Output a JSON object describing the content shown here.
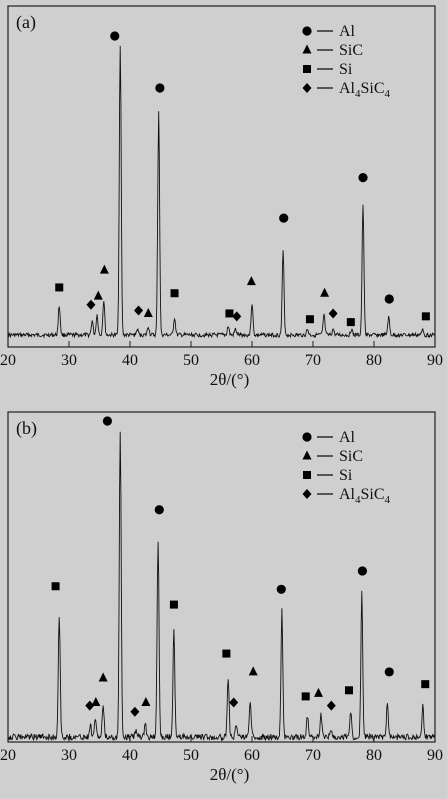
{
  "chart_data": [
    {
      "type": "line",
      "panel_label": "(a)",
      "xlabel": "2θ/(°)",
      "xlim": [
        20,
        90
      ],
      "xticks": [
        20,
        30,
        40,
        50,
        60,
        70,
        80,
        90
      ],
      "grid": false,
      "legend": {
        "placement": "top-right",
        "entries": [
          {
            "marker": "circle",
            "label": "Al"
          },
          {
            "marker": "triangle",
            "label": "SiC"
          },
          {
            "marker": "square",
            "label": "Si"
          },
          {
            "marker": "diamond",
            "label": "Al4SiC4"
          }
        ]
      },
      "peaks": [
        {
          "x": 28.4,
          "h": 0.1
        },
        {
          "x": 33.8,
          "h": 0.05
        },
        {
          "x": 34.6,
          "h": 0.07
        },
        {
          "x": 35.7,
          "h": 0.12
        },
        {
          "x": 38.4,
          "h": 1.0
        },
        {
          "x": 41.2,
          "h": 0.02
        },
        {
          "x": 43.0,
          "h": 0.03
        },
        {
          "x": 44.7,
          "h": 0.77
        },
        {
          "x": 47.3,
          "h": 0.06
        },
        {
          "x": 56.1,
          "h": 0.03
        },
        {
          "x": 57.3,
          "h": 0.02
        },
        {
          "x": 60.0,
          "h": 0.11
        },
        {
          "x": 65.1,
          "h": 0.29
        },
        {
          "x": 69.1,
          "h": 0.02
        },
        {
          "x": 71.8,
          "h": 0.07
        },
        {
          "x": 73.3,
          "h": 0.02
        },
        {
          "x": 76.3,
          "h": 0.02
        },
        {
          "x": 78.2,
          "h": 0.45
        },
        {
          "x": 82.4,
          "h": 0.06
        },
        {
          "x": 88.0,
          "h": 0.02
        }
      ],
      "markers": [
        {
          "x": 28.4,
          "h": 0.13,
          "type": "square"
        },
        {
          "x": 33.6,
          "h": 0.07,
          "type": "diamond"
        },
        {
          "x": 34.8,
          "h": 0.1,
          "type": "triangle"
        },
        {
          "x": 35.8,
          "h": 0.19,
          "type": "triangle"
        },
        {
          "x": 37.5,
          "h": 1.0,
          "type": "circle"
        },
        {
          "x": 41.4,
          "h": 0.05,
          "type": "diamond"
        },
        {
          "x": 43.0,
          "h": 0.04,
          "type": "triangle"
        },
        {
          "x": 44.9,
          "h": 0.82,
          "type": "circle"
        },
        {
          "x": 47.3,
          "h": 0.11,
          "type": "square"
        },
        {
          "x": 56.3,
          "h": 0.04,
          "type": "square"
        },
        {
          "x": 57.5,
          "h": 0.03,
          "type": "diamond"
        },
        {
          "x": 59.9,
          "h": 0.15,
          "type": "triangle"
        },
        {
          "x": 65.2,
          "h": 0.37,
          "type": "circle"
        },
        {
          "x": 69.5,
          "h": 0.02,
          "type": "square"
        },
        {
          "x": 71.9,
          "h": 0.11,
          "type": "triangle"
        },
        {
          "x": 73.3,
          "h": 0.04,
          "type": "diamond"
        },
        {
          "x": 76.2,
          "h": 0.01,
          "type": "square"
        },
        {
          "x": 78.2,
          "h": 0.51,
          "type": "circle"
        },
        {
          "x": 82.5,
          "h": 0.09,
          "type": "circle"
        },
        {
          "x": 88.5,
          "h": 0.03,
          "type": "square"
        }
      ]
    },
    {
      "type": "line",
      "panel_label": "(b)",
      "xlabel": "2θ/(°)",
      "xlim": [
        20,
        90
      ],
      "xticks": [
        20,
        30,
        40,
        50,
        60,
        70,
        80,
        90
      ],
      "grid": false,
      "legend": {
        "placement": "top-right",
        "entries": [
          {
            "marker": "circle",
            "label": "Al"
          },
          {
            "marker": "triangle",
            "label": "SiC"
          },
          {
            "marker": "square",
            "label": "Si"
          },
          {
            "marker": "diamond",
            "label": "Al4SiC4"
          }
        ]
      },
      "peaks": [
        {
          "x": 28.4,
          "h": 0.4
        },
        {
          "x": 33.5,
          "h": 0.04
        },
        {
          "x": 34.3,
          "h": 0.06
        },
        {
          "x": 35.6,
          "h": 0.1
        },
        {
          "x": 38.4,
          "h": 1.0
        },
        {
          "x": 40.9,
          "h": 0.02
        },
        {
          "x": 42.5,
          "h": 0.04
        },
        {
          "x": 44.6,
          "h": 0.64
        },
        {
          "x": 47.2,
          "h": 0.35
        },
        {
          "x": 56.1,
          "h": 0.19
        },
        {
          "x": 57.4,
          "h": 0.04
        },
        {
          "x": 59.7,
          "h": 0.12
        },
        {
          "x": 64.9,
          "h": 0.41
        },
        {
          "x": 69.1,
          "h": 0.07
        },
        {
          "x": 71.3,
          "h": 0.07
        },
        {
          "x": 73.0,
          "h": 0.02
        },
        {
          "x": 76.2,
          "h": 0.08
        },
        {
          "x": 78.0,
          "h": 0.47
        },
        {
          "x": 82.2,
          "h": 0.11
        },
        {
          "x": 88.0,
          "h": 0.1
        }
      ],
      "markers": [
        {
          "x": 27.8,
          "h": 0.46,
          "type": "square"
        },
        {
          "x": 33.4,
          "h": 0.07,
          "type": "diamond"
        },
        {
          "x": 34.4,
          "h": 0.08,
          "type": "triangle"
        },
        {
          "x": 35.6,
          "h": 0.16,
          "type": "triangle"
        },
        {
          "x": 36.3,
          "h": 1.0,
          "type": "circle"
        },
        {
          "x": 40.8,
          "h": 0.05,
          "type": "diamond"
        },
        {
          "x": 42.6,
          "h": 0.08,
          "type": "triangle"
        },
        {
          "x": 44.8,
          "h": 0.71,
          "type": "circle"
        },
        {
          "x": 47.2,
          "h": 0.4,
          "type": "square"
        },
        {
          "x": 55.8,
          "h": 0.24,
          "type": "square"
        },
        {
          "x": 57.0,
          "h": 0.08,
          "type": "diamond"
        },
        {
          "x": 60.2,
          "h": 0.18,
          "type": "triangle"
        },
        {
          "x": 64.8,
          "h": 0.45,
          "type": "circle"
        },
        {
          "x": 68.8,
          "h": 0.1,
          "type": "square"
        },
        {
          "x": 70.9,
          "h": 0.11,
          "type": "triangle"
        },
        {
          "x": 73.0,
          "h": 0.07,
          "type": "diamond"
        },
        {
          "x": 75.9,
          "h": 0.12,
          "type": "square"
        },
        {
          "x": 78.1,
          "h": 0.51,
          "type": "circle"
        },
        {
          "x": 82.5,
          "h": 0.18,
          "type": "circle"
        },
        {
          "x": 88.4,
          "h": 0.14,
          "type": "square"
        }
      ]
    }
  ]
}
